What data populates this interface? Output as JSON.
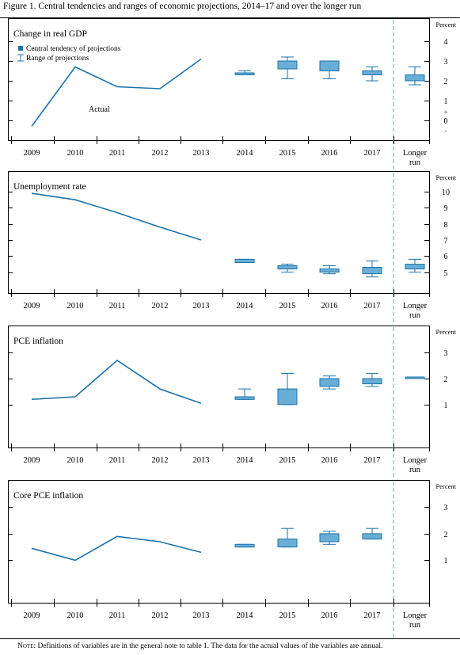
{
  "figure": {
    "title": "Figure 1. Central tendencies and ranges of economic projections,  2014–17 and over the longer run",
    "note_label": "Note:",
    "note_text": " Definitions of variables are in the general note to table 1. The data for the actual values of the variables are annual."
  },
  "colors": {
    "line": "#1a73aa",
    "box_fill": "#6aaed6",
    "box_stroke": "#1a73aa",
    "whisker": "#1a73aa",
    "divider": "#7fb2e0",
    "axis": "#000000"
  },
  "chart_data": [
    {
      "type": "line",
      "title": "Change in real GDP",
      "unit_label": "Percent",
      "categories": [
        "2009",
        "2010",
        "2011",
        "2012",
        "2013",
        "2014",
        "2015",
        "2016",
        "2017",
        "Longer run"
      ],
      "category_labels": [
        [
          "2009"
        ],
        [
          "2010"
        ],
        [
          "2011"
        ],
        [
          "2012"
        ],
        [
          "2013"
        ],
        [
          "2014"
        ],
        [
          "2015"
        ],
        [
          "2016"
        ],
        [
          "2017"
        ],
        [
          "Longer",
          "run"
        ]
      ],
      "yticks": [
        "4",
        "3",
        "2",
        "1",
        "+",
        "0",
        "-"
      ],
      "ylim": [
        -1,
        4.4
      ],
      "legend": {
        "central_label": "Central tendency of projections",
        "range_label": "Range of projections"
      },
      "annotation": "Actual",
      "actual": [
        -0.3,
        2.7,
        1.7,
        1.6,
        3.1
      ],
      "central_tendency": [
        {
          "category": "2014",
          "low": 2.3,
          "high": 2.4
        },
        {
          "category": "2015",
          "low": 2.6,
          "high": 3.0
        },
        {
          "category": "2016",
          "low": 2.5,
          "high": 3.0
        },
        {
          "category": "2017",
          "low": 2.3,
          "high": 2.5
        },
        {
          "category": "Longer run",
          "low": 2.0,
          "high": 2.3
        }
      ],
      "range": [
        {
          "category": "2014",
          "low": 2.3,
          "high": 2.5
        },
        {
          "category": "2015",
          "low": 2.1,
          "high": 3.2
        },
        {
          "category": "2016",
          "low": 2.1,
          "high": 3.0
        },
        {
          "category": "2017",
          "low": 2.0,
          "high": 2.7
        },
        {
          "category": "Longer run",
          "low": 1.8,
          "high": 2.7
        }
      ]
    },
    {
      "type": "line",
      "title": "Unemployment rate",
      "unit_label": "Percent",
      "categories": [
        "2009",
        "2010",
        "2011",
        "2012",
        "2013",
        "2014",
        "2015",
        "2016",
        "2017",
        "Longer run"
      ],
      "category_labels": [
        [
          "2009"
        ],
        [
          "2010"
        ],
        [
          "2011"
        ],
        [
          "2012"
        ],
        [
          "2013"
        ],
        [
          "2014"
        ],
        [
          "2015"
        ],
        [
          "2016"
        ],
        [
          "2017"
        ],
        [
          "Longer",
          "run"
        ]
      ],
      "yticks": [
        "10",
        "9",
        "8",
        "7",
        "6",
        "5"
      ],
      "ylim": [
        3.7,
        10.3
      ],
      "actual": [
        9.9,
        9.5,
        8.7,
        7.8,
        7.0
      ],
      "central_tendency": [
        {
          "category": "2014",
          "low": 5.6,
          "high": 5.8
        },
        {
          "category": "2015",
          "low": 5.2,
          "high": 5.4
        },
        {
          "category": "2016",
          "low": 5.0,
          "high": 5.2
        },
        {
          "category": "2017",
          "low": 4.9,
          "high": 5.3
        },
        {
          "category": "Longer run",
          "low": 5.2,
          "high": 5.5
        }
      ],
      "range": [
        {
          "category": "2014",
          "low": 5.6,
          "high": 5.8
        },
        {
          "category": "2015",
          "low": 5.0,
          "high": 5.5
        },
        {
          "category": "2016",
          "low": 4.9,
          "high": 5.4
        },
        {
          "category": "2017",
          "low": 4.7,
          "high": 5.7
        },
        {
          "category": "Longer run",
          "low": 5.0,
          "high": 5.8
        }
      ]
    },
    {
      "type": "line",
      "title": "PCE inflation",
      "unit_label": "Percent",
      "categories": [
        "2009",
        "2010",
        "2011",
        "2012",
        "2013",
        "2014",
        "2015",
        "2016",
        "2017",
        "Longer run"
      ],
      "category_labels": [
        [
          "2009"
        ],
        [
          "2010"
        ],
        [
          "2011"
        ],
        [
          "2012"
        ],
        [
          "2013"
        ],
        [
          "2014"
        ],
        [
          "2015"
        ],
        [
          "2016"
        ],
        [
          "2017"
        ],
        [
          "Longer",
          "run"
        ]
      ],
      "yticks": [
        "3",
        "2",
        "1"
      ],
      "ylim": [
        -0.65,
        3.4
      ],
      "actual": [
        1.2,
        1.3,
        2.7,
        1.6,
        1.05
      ],
      "central_tendency": [
        {
          "category": "2014",
          "low": 1.2,
          "high": 1.3
        },
        {
          "category": "2015",
          "low": 1.0,
          "high": 1.6
        },
        {
          "category": "2016",
          "low": 1.7,
          "high": 2.0
        },
        {
          "category": "2017",
          "low": 1.8,
          "high": 2.0
        },
        {
          "category": "Longer run",
          "low": 2.0,
          "high": 2.0
        }
      ],
      "range": [
        {
          "category": "2014",
          "low": 1.2,
          "high": 1.6
        },
        {
          "category": "2015",
          "low": 1.0,
          "high": 2.2
        },
        {
          "category": "2016",
          "low": 1.6,
          "high": 2.1
        },
        {
          "category": "2017",
          "low": 1.7,
          "high": 2.2
        },
        {
          "category": "Longer run",
          "low": 2.0,
          "high": 2.0
        }
      ]
    },
    {
      "type": "line",
      "title": "Core PCE inflation",
      "unit_label": "Percent",
      "categories": [
        "2009",
        "2010",
        "2011",
        "2012",
        "2013",
        "2014",
        "2015",
        "2016",
        "2017",
        "Longer run"
      ],
      "category_labels": [
        [
          "2009"
        ],
        [
          "2010"
        ],
        [
          "2011"
        ],
        [
          "2012"
        ],
        [
          "2013"
        ],
        [
          "2014"
        ],
        [
          "2015"
        ],
        [
          "2016"
        ],
        [
          "2017"
        ],
        [
          "Longer",
          "run"
        ]
      ],
      "yticks": [
        "3",
        "2",
        "1"
      ],
      "ylim": [
        -0.6,
        3.4
      ],
      "actual": [
        1.45,
        1.0,
        1.9,
        1.7,
        1.3
      ],
      "central_tendency": [
        {
          "category": "2014",
          "low": 1.5,
          "high": 1.6
        },
        {
          "category": "2015",
          "low": 1.5,
          "high": 1.8
        },
        {
          "category": "2016",
          "low": 1.7,
          "high": 2.0
        },
        {
          "category": "2017",
          "low": 1.8,
          "high": 2.0
        }
      ],
      "range": [
        {
          "category": "2014",
          "low": 1.5,
          "high": 1.6
        },
        {
          "category": "2015",
          "low": 1.5,
          "high": 2.2
        },
        {
          "category": "2016",
          "low": 1.6,
          "high": 2.1
        },
        {
          "category": "2017",
          "low": 1.8,
          "high": 2.2
        }
      ]
    }
  ]
}
